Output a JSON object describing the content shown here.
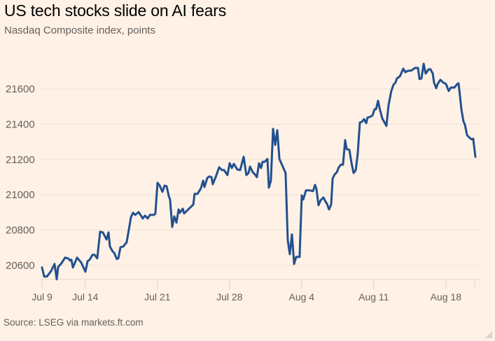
{
  "chart_data": {
    "type": "line",
    "title": "US tech stocks slide on AI fears",
    "subtitle": "Nasdaq Composite index, points",
    "source": "Source: LSEG via markets.ft.com",
    "xlabel": "",
    "ylabel": "",
    "x_unit": "trading days since Jul 9",
    "xlim": [
      0,
      30.05
    ],
    "ylim": [
      20520,
      21760
    ],
    "grid": true,
    "line_color": "#22508F",
    "y_ticks": [
      20600,
      20800,
      21000,
      21200,
      21400,
      21600
    ],
    "x_ticks": [
      {
        "label": "Jul 9",
        "value": 0
      },
      {
        "label": "Jul 14",
        "value": 3
      },
      {
        "label": "Jul 21",
        "value": 8
      },
      {
        "label": "Jul 28",
        "value": 13
      },
      {
        "label": "Aug 4",
        "value": 18
      },
      {
        "label": "Aug 11",
        "value": 23
      },
      {
        "label": "Aug 18",
        "value": 28
      },
      {
        "label": "",
        "value": 30
      }
    ],
    "series": [
      {
        "name": "Nasdaq Composite",
        "points": [
          [
            0,
            20588
          ],
          [
            0.15,
            20537
          ],
          [
            0.34,
            20537
          ],
          [
            0.63,
            20568
          ],
          [
            0.87,
            20608
          ],
          [
            1.02,
            20521
          ],
          [
            1.12,
            20592
          ],
          [
            1.31,
            20608
          ],
          [
            1.6,
            20644
          ],
          [
            1.8,
            20640
          ],
          [
            1.94,
            20628
          ],
          [
            2.04,
            20632
          ],
          [
            2.14,
            20588
          ],
          [
            2.43,
            20644
          ],
          [
            2.72,
            20616
          ],
          [
            3.01,
            20564
          ],
          [
            3.16,
            20624
          ],
          [
            3.3,
            20632
          ],
          [
            3.5,
            20660
          ],
          [
            3.64,
            20660
          ],
          [
            3.83,
            20640
          ],
          [
            4.03,
            20791
          ],
          [
            4.22,
            20787
          ],
          [
            4.47,
            20747
          ],
          [
            4.61,
            20787
          ],
          [
            4.71,
            20707
          ],
          [
            4.9,
            20679
          ],
          [
            5.0,
            20671
          ],
          [
            5.19,
            20636
          ],
          [
            5.29,
            20640
          ],
          [
            5.44,
            20703
          ],
          [
            5.63,
            20707
          ],
          [
            5.87,
            20731
          ],
          [
            6.02,
            20802
          ],
          [
            6.17,
            20874
          ],
          [
            6.31,
            20898
          ],
          [
            6.46,
            20886
          ],
          [
            6.7,
            20902
          ],
          [
            6.99,
            20866
          ],
          [
            7.14,
            20882
          ],
          [
            7.33,
            20866
          ],
          [
            7.48,
            20886
          ],
          [
            7.77,
            20886
          ],
          [
            7.86,
            20894
          ],
          [
            8.01,
            21068
          ],
          [
            8.16,
            21052
          ],
          [
            8.35,
            21017
          ],
          [
            8.5,
            21052
          ],
          [
            8.64,
            21048
          ],
          [
            8.79,
            20993
          ],
          [
            8.88,
            20973
          ],
          [
            9.03,
            20818
          ],
          [
            9.17,
            20878
          ],
          [
            9.32,
            20842
          ],
          [
            9.47,
            20917
          ],
          [
            9.56,
            20898
          ],
          [
            9.76,
            20921
          ],
          [
            9.85,
            20894
          ],
          [
            10.19,
            20921
          ],
          [
            10.34,
            20933
          ],
          [
            10.49,
            20945
          ],
          [
            10.58,
            21005
          ],
          [
            10.78,
            21005
          ],
          [
            11.02,
            21037
          ],
          [
            11.17,
            21080
          ],
          [
            11.26,
            21044
          ],
          [
            11.46,
            21096
          ],
          [
            11.6,
            21104
          ],
          [
            11.75,
            21100
          ],
          [
            11.84,
            21060
          ],
          [
            12.04,
            21100
          ],
          [
            12.28,
            21156
          ],
          [
            12.48,
            21140
          ],
          [
            12.62,
            21140
          ],
          [
            12.86,
            21112
          ],
          [
            13.01,
            21179
          ],
          [
            13.16,
            21152
          ],
          [
            13.3,
            21175
          ],
          [
            13.54,
            21144
          ],
          [
            13.74,
            21140
          ],
          [
            13.98,
            21215
          ],
          [
            14.17,
            21112
          ],
          [
            14.32,
            21124
          ],
          [
            14.42,
            21160
          ],
          [
            14.61,
            21128
          ],
          [
            14.76,
            21116
          ],
          [
            14.9,
            21100
          ],
          [
            15.05,
            21179
          ],
          [
            15.19,
            21152
          ],
          [
            15.29,
            21187
          ],
          [
            15.44,
            21187
          ],
          [
            15.63,
            21203
          ],
          [
            15.73,
            21041
          ],
          [
            15.87,
            21080
          ],
          [
            16.02,
            21374
          ],
          [
            16.17,
            21283
          ],
          [
            16.31,
            21366
          ],
          [
            16.46,
            21203
          ],
          [
            16.89,
            21124
          ],
          [
            17.04,
            20743
          ],
          [
            17.18,
            20664
          ],
          [
            17.33,
            20775
          ],
          [
            17.48,
            20608
          ],
          [
            17.62,
            20648
          ],
          [
            17.86,
            20648
          ],
          [
            18.01,
            20997
          ],
          [
            18.11,
            20973
          ],
          [
            18.3,
            21025
          ],
          [
            18.59,
            21025
          ],
          [
            18.79,
            21021
          ],
          [
            18.93,
            21056
          ],
          [
            19.03,
            21033
          ],
          [
            19.17,
            20941
          ],
          [
            19.32,
            20969
          ],
          [
            19.51,
            20985
          ],
          [
            19.66,
            20961
          ],
          [
            19.76,
            20949
          ],
          [
            19.9,
            20917
          ],
          [
            20.05,
            20945
          ],
          [
            20.15,
            21092
          ],
          [
            20.29,
            21116
          ],
          [
            20.44,
            21128
          ],
          [
            20.58,
            21156
          ],
          [
            20.73,
            21171
          ],
          [
            20.87,
            21171
          ],
          [
            21.02,
            21310
          ],
          [
            21.12,
            21259
          ],
          [
            21.31,
            21255
          ],
          [
            21.46,
            21179
          ],
          [
            21.6,
            21124
          ],
          [
            21.75,
            21140
          ],
          [
            21.89,
            21231
          ],
          [
            22.04,
            21410
          ],
          [
            22.18,
            21414
          ],
          [
            22.33,
            21429
          ],
          [
            22.48,
            21406
          ],
          [
            22.57,
            21437
          ],
          [
            22.72,
            21441
          ],
          [
            22.91,
            21449
          ],
          [
            23.06,
            21485
          ],
          [
            23.16,
            21485
          ],
          [
            23.3,
            21533
          ],
          [
            23.4,
            21493
          ],
          [
            23.59,
            21433
          ],
          [
            23.88,
            21390
          ],
          [
            24.03,
            21509
          ],
          [
            24.22,
            21588
          ],
          [
            24.37,
            21624
          ],
          [
            24.51,
            21636
          ],
          [
            24.61,
            21660
          ],
          [
            24.81,
            21671
          ],
          [
            25.05,
            21715
          ],
          [
            25.19,
            21695
          ],
          [
            25.39,
            21703
          ],
          [
            25.58,
            21703
          ],
          [
            25.73,
            21711
          ],
          [
            25.87,
            21719
          ],
          [
            26.07,
            21719
          ],
          [
            26.17,
            21656
          ],
          [
            26.31,
            21660
          ],
          [
            26.46,
            21743
          ],
          [
            26.6,
            21687
          ],
          [
            26.8,
            21711
          ],
          [
            26.94,
            21711
          ],
          [
            27.09,
            21687
          ],
          [
            27.18,
            21636
          ],
          [
            27.33,
            21604
          ],
          [
            27.43,
            21628
          ],
          [
            27.62,
            21652
          ],
          [
            27.82,
            21636
          ],
          [
            28.01,
            21628
          ],
          [
            28.2,
            21588
          ],
          [
            28.35,
            21608
          ],
          [
            28.59,
            21608
          ],
          [
            28.79,
            21628
          ],
          [
            28.88,
            21632
          ],
          [
            28.98,
            21560
          ],
          [
            29.08,
            21485
          ],
          [
            29.22,
            21417
          ],
          [
            29.32,
            21398
          ],
          [
            29.47,
            21338
          ],
          [
            29.66,
            21322
          ],
          [
            29.81,
            21314
          ],
          [
            29.9,
            21318
          ],
          [
            30.05,
            21215
          ]
        ]
      }
    ]
  }
}
